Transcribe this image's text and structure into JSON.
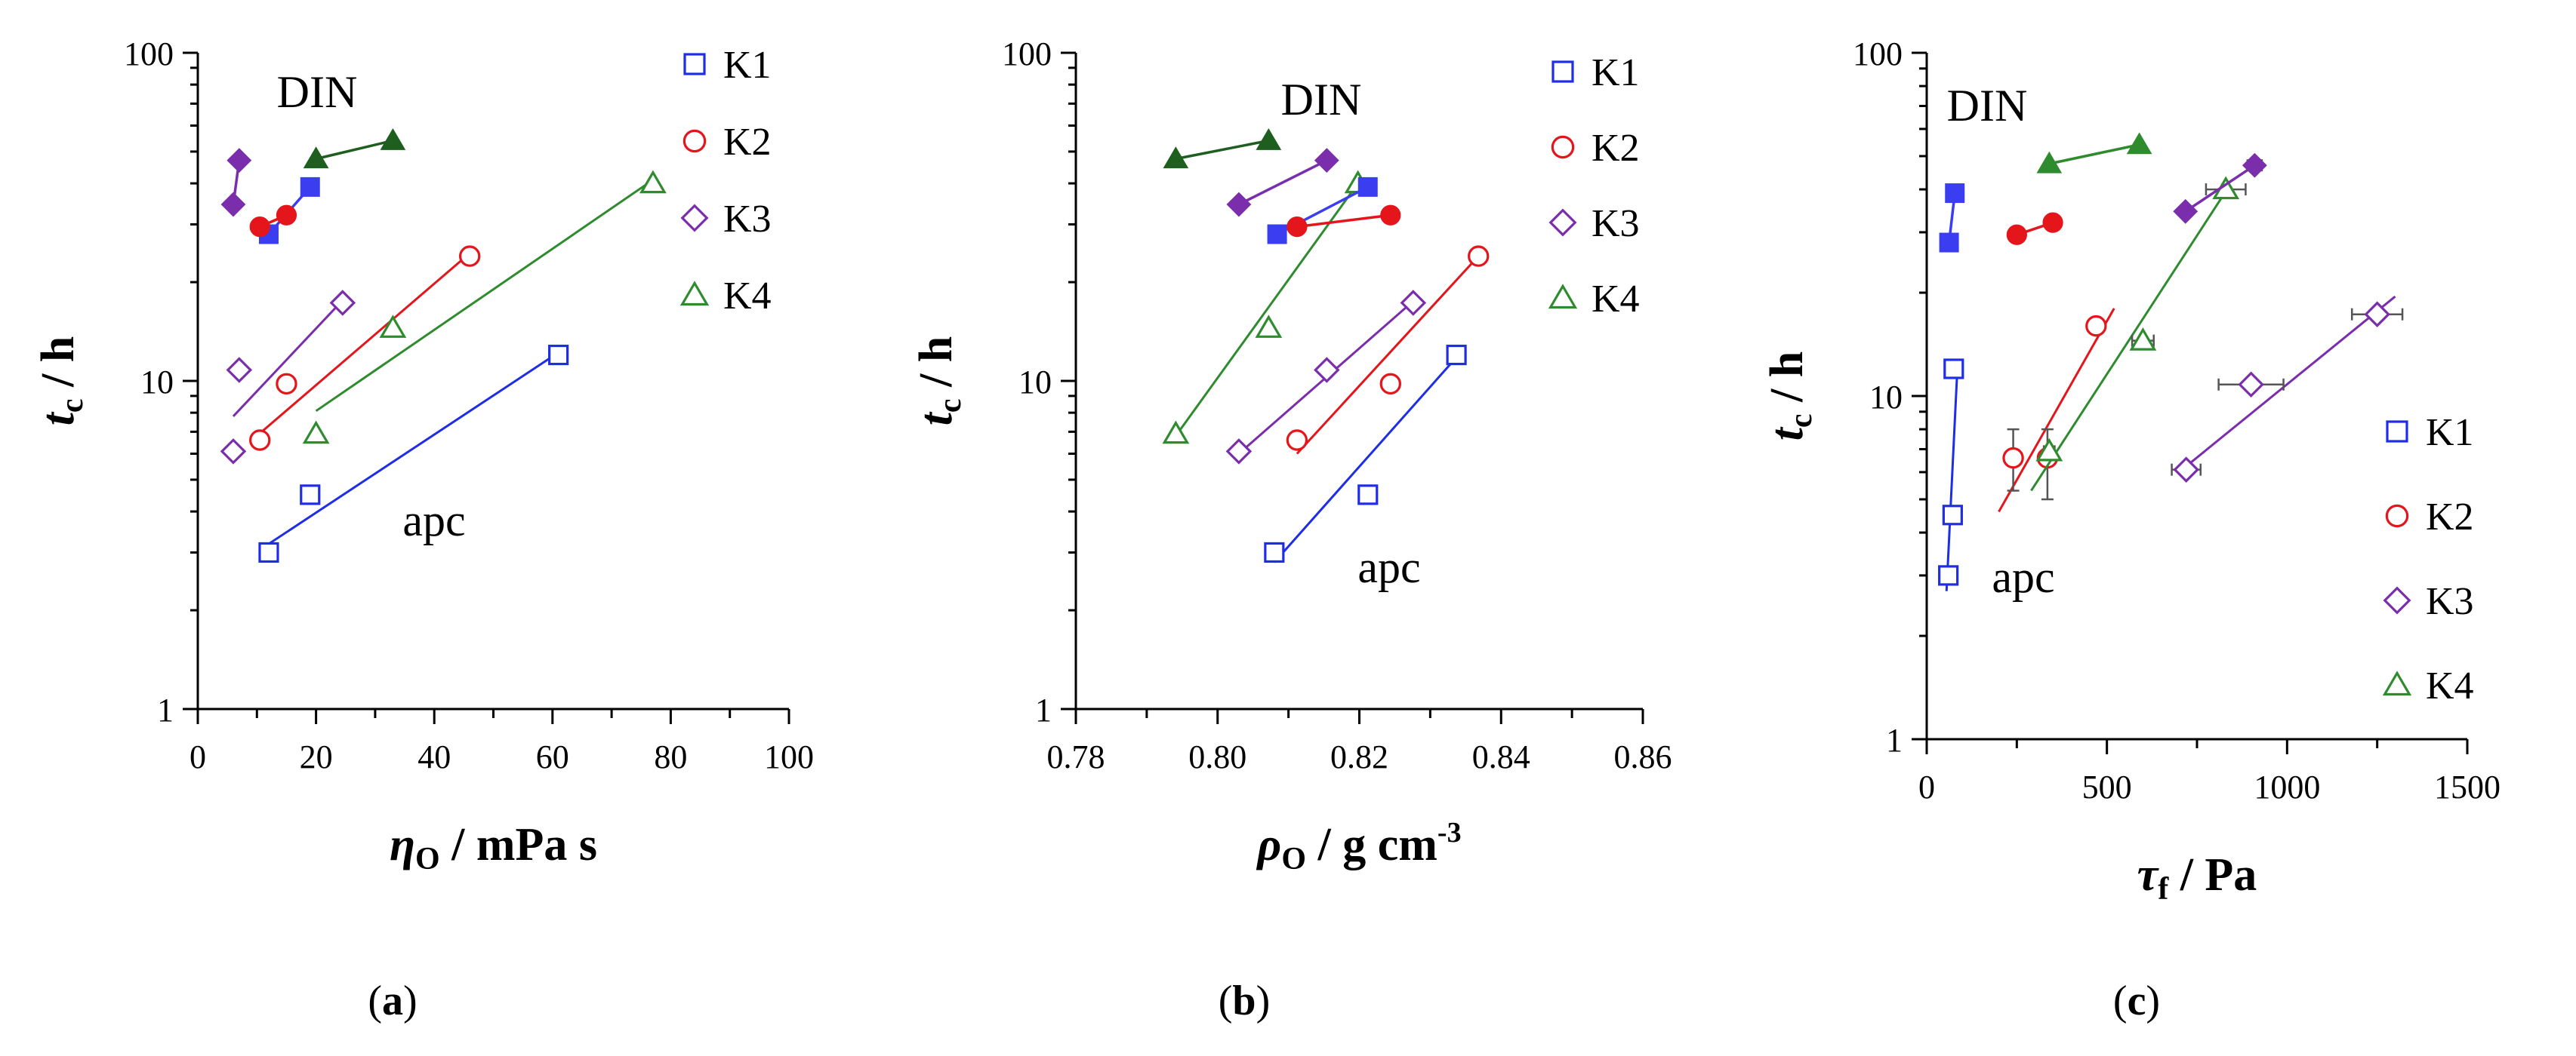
{
  "chart_data": [
    {
      "type": "scatter",
      "panel_label": "(a)",
      "xlabel": {
        "symbol": "η",
        "subscript": "O",
        "unit": "mPa s"
      },
      "ylabel": {
        "symbol": "t",
        "subscript": "c",
        "unit": "h"
      },
      "xlim": [
        0,
        100
      ],
      "ylim": [
        1,
        100
      ],
      "yscale": "log",
      "xticks": [
        0,
        20,
        40,
        60,
        80,
        100
      ],
      "xtick_labels": [
        "0",
        "20",
        "40",
        "60",
        "80",
        "100"
      ],
      "yticks": [
        1,
        10,
        100
      ],
      "ytick_labels": [
        "1",
        "10",
        "100"
      ],
      "legend_position": "top-right",
      "annotations": [
        {
          "text": "DIN",
          "near": "upper"
        },
        {
          "text": "apc",
          "near": "lower"
        }
      ],
      "series": [
        {
          "name": "K1",
          "condition": "apc",
          "color": "#1f2ee6",
          "marker": "square",
          "filled": false,
          "x": [
            12,
            19,
            61
          ],
          "y": [
            3.0,
            4.5,
            12
          ],
          "trendline": {
            "x": [
              11,
              61
            ],
            "y": [
              3.1,
              12.2
            ]
          }
        },
        {
          "name": "K2",
          "condition": "apc",
          "color": "#e4151b",
          "marker": "circle",
          "filled": false,
          "x": [
            10.5,
            15,
            46
          ],
          "y": [
            6.6,
            9.8,
            24
          ],
          "trendline": {
            "x": [
              10,
              46
            ],
            "y": [
              6.8,
              24.5
            ]
          }
        },
        {
          "name": "K3",
          "condition": "apc",
          "color": "#7a2eab",
          "marker": "diamond",
          "filled": false,
          "x": [
            6,
            7,
            24.5
          ],
          "y": [
            6.1,
            10.8,
            17.3
          ],
          "trendline": {
            "x": [
              6,
              25
            ],
            "y": [
              7.8,
              18
            ]
          }
        },
        {
          "name": "K4",
          "condition": "apc",
          "color": "#2e8b2e",
          "marker": "triangle",
          "filled": false,
          "x": [
            20,
            33,
            77
          ],
          "y": [
            6.9,
            14.5,
            40
          ],
          "trendline": {
            "x": [
              20,
              77
            ],
            "y": [
              8.1,
              41
            ]
          }
        },
        {
          "name": "K1",
          "condition": "DIN",
          "color": "#3a3df0",
          "marker": "square",
          "filled": true,
          "x": [
            12,
            19
          ],
          "y": [
            28,
            39
          ],
          "connected": true
        },
        {
          "name": "K2",
          "condition": "DIN",
          "color": "#e4151b",
          "marker": "circle",
          "filled": true,
          "x": [
            10.5,
            15
          ],
          "y": [
            29.5,
            32
          ],
          "connected": true
        },
        {
          "name": "K3",
          "condition": "DIN",
          "color": "#7a2eab",
          "marker": "diamond",
          "filled": true,
          "x": [
            6,
            7
          ],
          "y": [
            34.5,
            47
          ],
          "connected": true
        },
        {
          "name": "K4",
          "condition": "DIN",
          "color": "#1e5e1e",
          "marker": "triangle",
          "filled": true,
          "x": [
            20,
            33
          ],
          "y": [
            47.5,
            54
          ],
          "connected": true
        }
      ]
    },
    {
      "type": "scatter",
      "panel_label": "(b)",
      "xlabel": {
        "symbol": "ρ",
        "subscript": "O",
        "unit": "g cm",
        "superscript": "-3"
      },
      "ylabel": {
        "symbol": "t",
        "subscript": "c",
        "unit": "h"
      },
      "xlim": [
        0.78,
        0.86
      ],
      "ylim": [
        1,
        100
      ],
      "yscale": "log",
      "xticks": [
        0.78,
        0.8,
        0.82,
        0.84,
        0.86
      ],
      "xtick_labels": [
        "0.78",
        "0.80",
        "0.82",
        "0.84",
        "0.86"
      ],
      "yticks": [
        1,
        10,
        100
      ],
      "ytick_labels": [
        "1",
        "10",
        "100"
      ],
      "legend_position": "top-right",
      "annotations": [
        {
          "text": "DIN",
          "near": "upper"
        },
        {
          "text": "apc",
          "near": "lower"
        }
      ],
      "series": [
        {
          "name": "K1",
          "condition": "apc",
          "color": "#1f2ee6",
          "marker": "square",
          "filled": false,
          "x": [
            0.808,
            0.8212,
            0.8337
          ],
          "y": [
            3.0,
            4.5,
            12
          ],
          "trendline": {
            "x": [
              0.808,
              0.8337
            ],
            "y": [
              2.8,
              11.8
            ]
          }
        },
        {
          "name": "K2",
          "condition": "apc",
          "color": "#e4151b",
          "marker": "circle",
          "filled": false,
          "x": [
            0.8112,
            0.8244,
            0.8368
          ],
          "y": [
            6.6,
            9.8,
            24
          ],
          "trendline": {
            "x": [
              0.8112,
              0.8368
            ],
            "y": [
              6.0,
              24
            ]
          }
        },
        {
          "name": "K3",
          "condition": "apc",
          "color": "#7a2eab",
          "marker": "diamond",
          "filled": false,
          "x": [
            0.803,
            0.8154,
            0.8276
          ],
          "y": [
            6.1,
            10.8,
            17.3
          ],
          "trendline": {
            "x": [
              0.803,
              0.8276
            ],
            "y": [
              6.0,
              17.5
            ]
          }
        },
        {
          "name": "K4",
          "condition": "apc",
          "color": "#2e8b2e",
          "marker": "triangle",
          "filled": false,
          "x": [
            0.7941,
            0.8072,
            0.8198
          ],
          "y": [
            6.9,
            14.5,
            40
          ],
          "trendline": {
            "x": [
              0.7941,
              0.8198
            ],
            "y": [
              6.8,
              40
            ]
          }
        },
        {
          "name": "K1",
          "condition": "DIN",
          "color": "#3a3df0",
          "marker": "square",
          "filled": true,
          "x": [
            0.8084,
            0.8212
          ],
          "y": [
            28,
            39
          ],
          "connected": true
        },
        {
          "name": "K2",
          "condition": "DIN",
          "color": "#e4151b",
          "marker": "circle",
          "filled": true,
          "x": [
            0.8112,
            0.8244
          ],
          "y": [
            29.5,
            32
          ],
          "connected": true
        },
        {
          "name": "K3",
          "condition": "DIN",
          "color": "#7a2eab",
          "marker": "diamond",
          "filled": true,
          "x": [
            0.803,
            0.8154
          ],
          "y": [
            34.5,
            47
          ],
          "connected": true
        },
        {
          "name": "K4",
          "condition": "DIN",
          "color": "#1e5e1e",
          "marker": "triangle",
          "filled": true,
          "x": [
            0.7941,
            0.8072
          ],
          "y": [
            47.5,
            54
          ],
          "connected": true
        }
      ]
    },
    {
      "type": "scatter",
      "panel_label": "(c)",
      "xlabel": {
        "symbol": "τ",
        "subscript": "f",
        "unit": "Pa"
      },
      "ylabel": {
        "symbol": "t",
        "subscript": "c",
        "unit": "h"
      },
      "xlim": [
        0,
        1500
      ],
      "ylim": [
        1,
        100
      ],
      "yscale": "log",
      "xticks": [
        0,
        500,
        1000,
        1500
      ],
      "xtick_labels": [
        "0",
        "500",
        "1000",
        "1500"
      ],
      "yticks": [
        1,
        10,
        100
      ],
      "ytick_labels": [
        "1",
        "10",
        "100"
      ],
      "legend_position": "bottom-right",
      "annotations": [
        {
          "text": "DIN",
          "near": "upper-left"
        },
        {
          "text": "apc",
          "near": "lower-left"
        }
      ],
      "series": [
        {
          "name": "K1",
          "condition": "apc",
          "color": "#1f2ee6",
          "marker": "square",
          "filled": false,
          "x": [
            60,
            72,
            75
          ],
          "y": [
            3.0,
            4.5,
            12
          ],
          "xerr": [
            10,
            10,
            10
          ],
          "trendline": {
            "x": [
              55,
              85
            ],
            "y": [
              2.7,
              12
            ]
          }
        },
        {
          "name": "K2",
          "condition": "apc",
          "color": "#e4151b",
          "marker": "circle",
          "filled": false,
          "x": [
            240,
            335,
            470
          ],
          "y": [
            6.6,
            6.6,
            16
          ],
          "yerr_low": [
            5.3,
            5.0,
            15.5
          ],
          "yerr_high": [
            8.0,
            8.0,
            16.5
          ],
          "trendline": {
            "x": [
              200,
              520
            ],
            "y": [
              4.6,
              18
            ]
          }
        },
        {
          "name": "K3",
          "condition": "apc",
          "color": "#7a2eab",
          "marker": "diamond",
          "filled": false,
          "x": [
            720,
            900,
            1250
          ],
          "y": [
            6.1,
            10.8,
            17.3
          ],
          "xerr": [
            40,
            90,
            70
          ],
          "trendline": {
            "x": [
              700,
              1300
            ],
            "y": [
              6.0,
              19.5
            ]
          }
        },
        {
          "name": "K4",
          "condition": "apc",
          "color": "#2e8b2e",
          "marker": "triangle",
          "filled": false,
          "x": [
            340,
            600,
            830
          ],
          "y": [
            6.9,
            14.5,
            40
          ],
          "xerr": [
            15,
            30,
            55
          ],
          "trendline": {
            "x": [
              290,
              840
            ],
            "y": [
              5.3,
              41
            ]
          }
        },
        {
          "name": "K1",
          "condition": "DIN",
          "color": "#3a3df0",
          "marker": "square",
          "filled": true,
          "x": [
            62,
            78
          ],
          "y": [
            28,
            39
          ],
          "connected": true
        },
        {
          "name": "K2",
          "condition": "DIN",
          "color": "#e4151b",
          "marker": "circle",
          "filled": true,
          "x": [
            250,
            350
          ],
          "y": [
            29.5,
            32
          ],
          "connected": true
        },
        {
          "name": "K3",
          "condition": "DIN",
          "color": "#7a2eab",
          "marker": "diamond",
          "filled": true,
          "x": [
            718,
            910
          ],
          "y": [
            34.5,
            47
          ],
          "xerr": [
            0,
            20
          ],
          "connected": true
        },
        {
          "name": "K4",
          "condition": "DIN",
          "color": "#2e8b2e",
          "marker": "triangle",
          "filled": true,
          "x": [
            340,
            590
          ],
          "y": [
            47.5,
            54
          ],
          "connected": true
        }
      ]
    }
  ]
}
